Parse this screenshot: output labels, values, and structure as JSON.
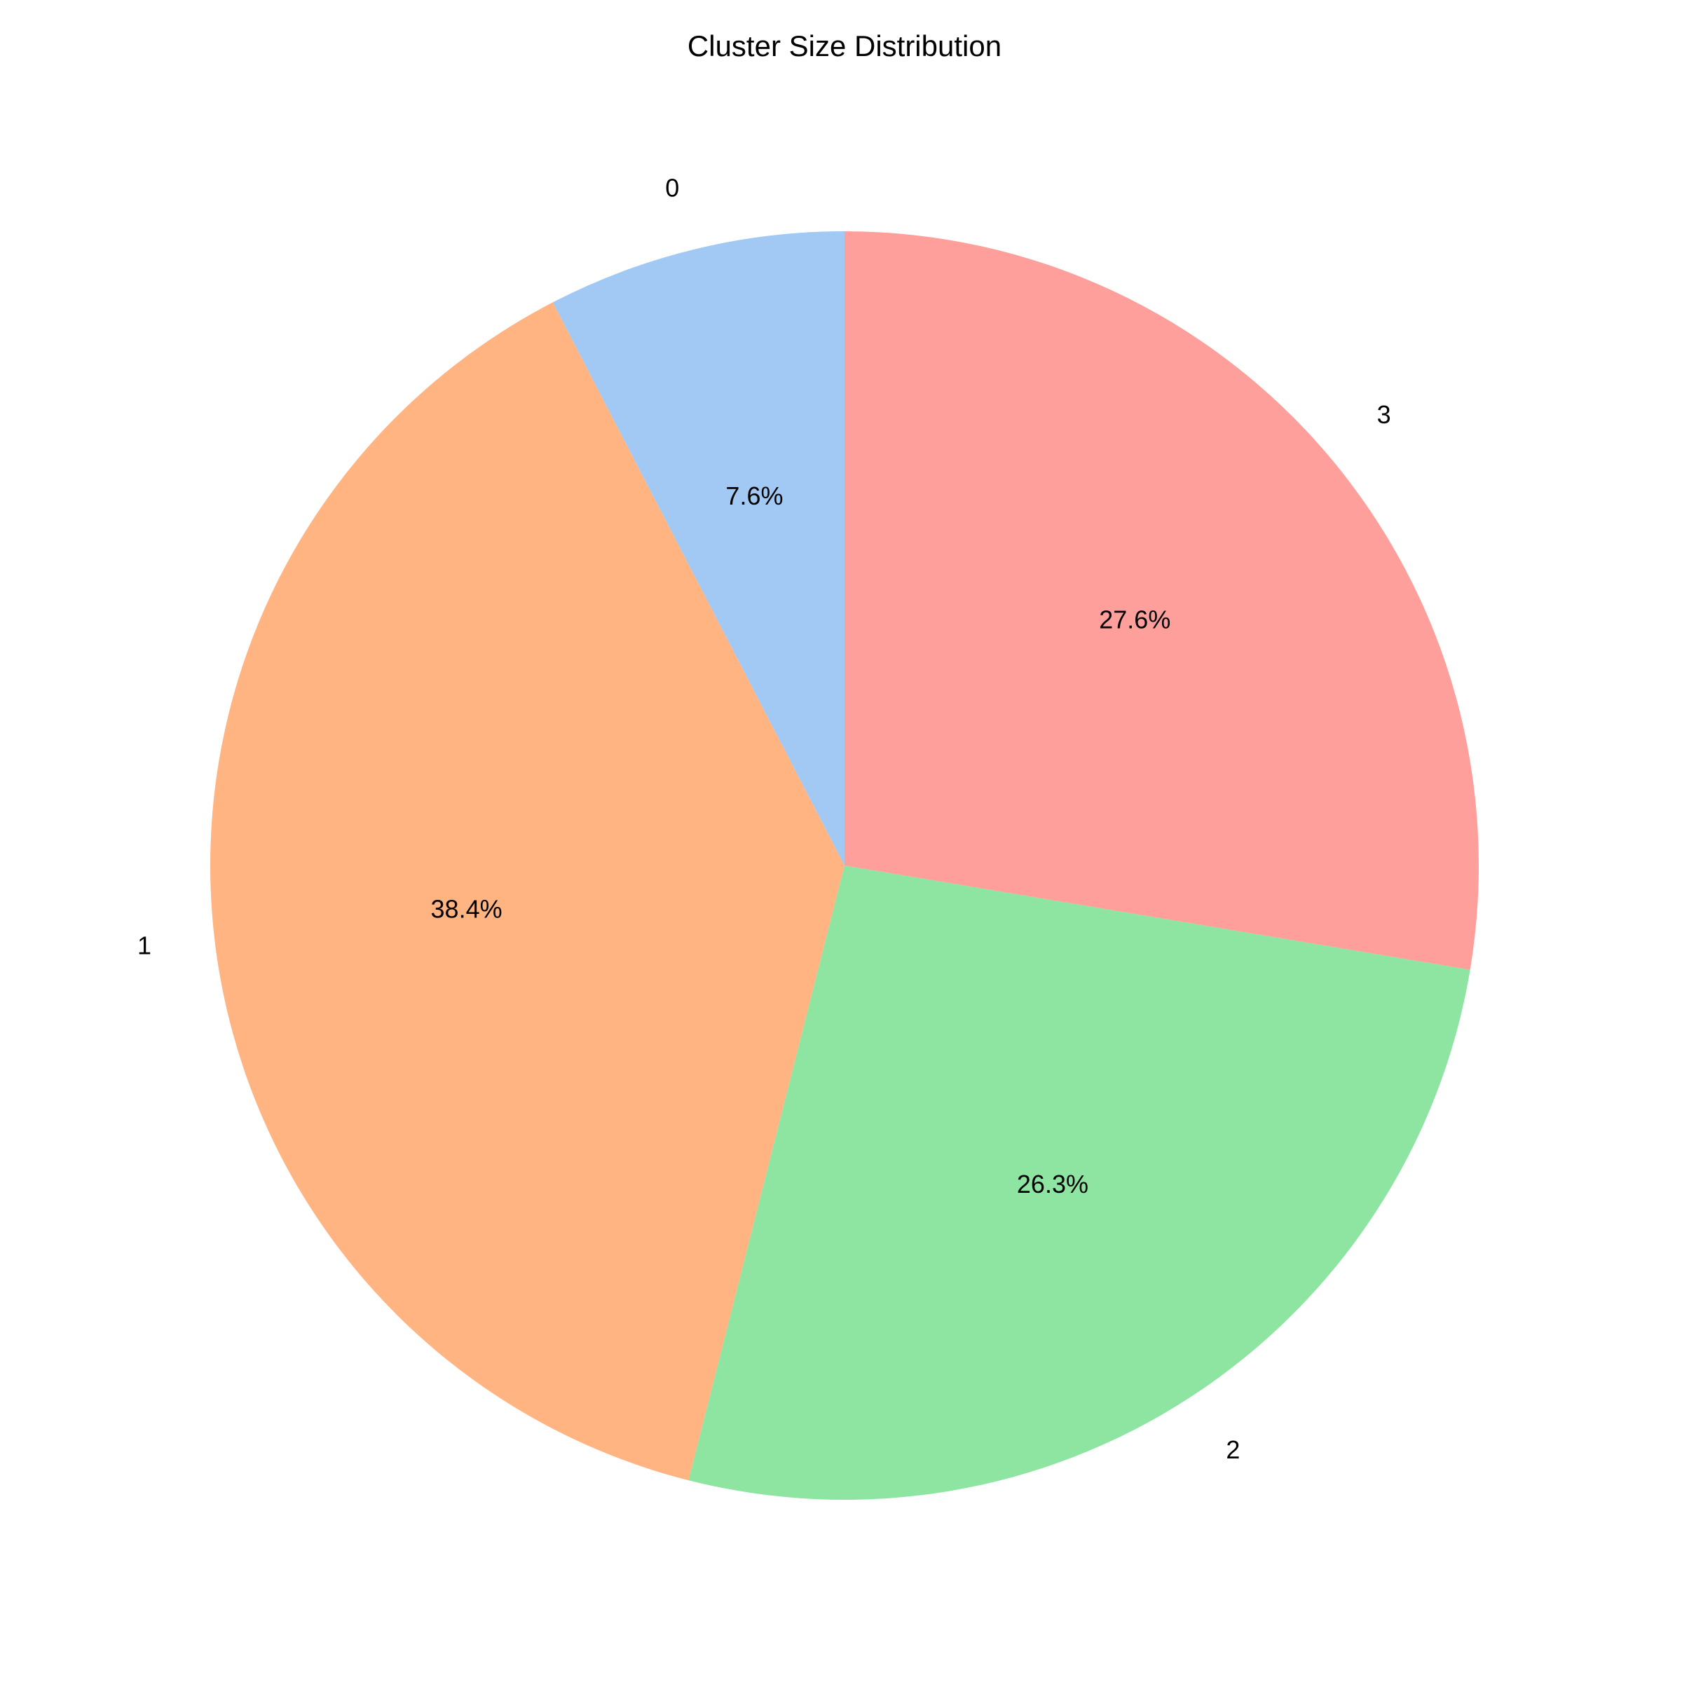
{
  "chart_data": {
    "type": "pie",
    "title": "Cluster Size Distribution",
    "slices": [
      {
        "label": "0",
        "value": 7.6,
        "pct_label": "7.6%",
        "color": "#A1C9F4"
      },
      {
        "label": "1",
        "value": 38.4,
        "pct_label": "38.4%",
        "color": "#FFB482"
      },
      {
        "label": "2",
        "value": 26.3,
        "pct_label": "26.3%",
        "color": "#8DE5A1"
      },
      {
        "label": "3",
        "value": 27.6,
        "pct_label": "27.6%",
        "color": "#FF9F9B"
      }
    ],
    "start_angle_deg": 90,
    "direction": "counterclockwise",
    "legend": "none"
  }
}
